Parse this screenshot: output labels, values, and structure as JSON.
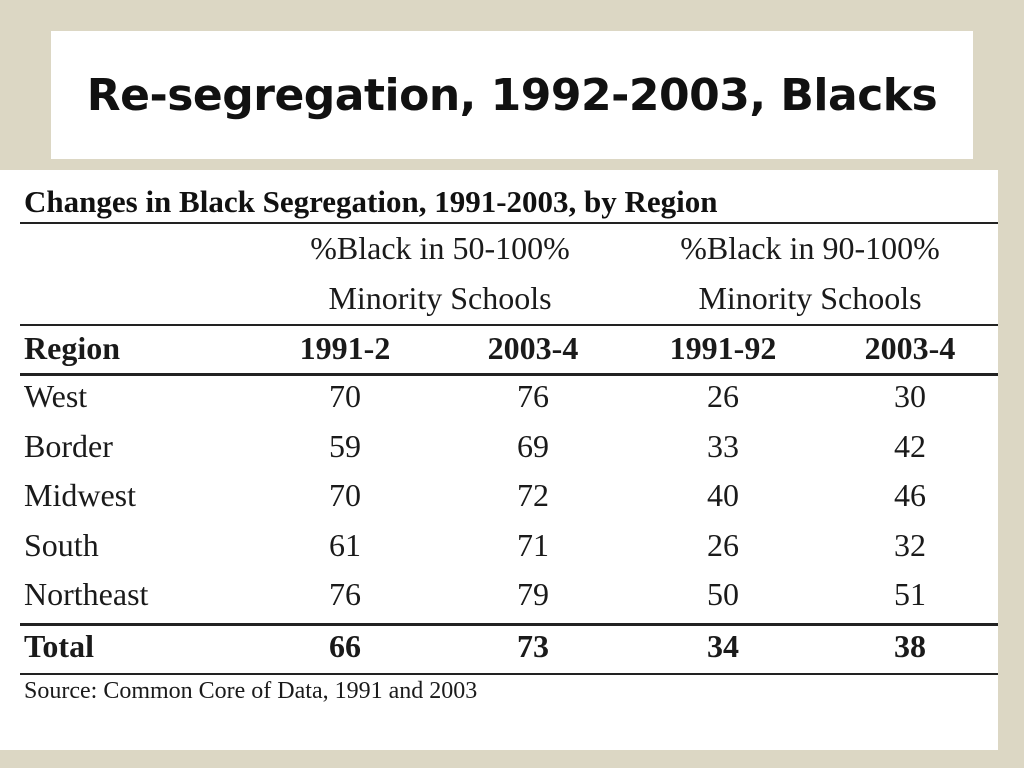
{
  "slide_title": "Re-segregation, 1992-2003, Blacks",
  "table": {
    "title": "Changes in Black Segregation, 1991-2003, by Region",
    "group_headers": [
      {
        "line1": "%Black in 50-100%",
        "line2": "Minority Schools"
      },
      {
        "line1": "%Black in 90-100%",
        "line2": "Minority Schools"
      }
    ],
    "columns": [
      "Region",
      "1991-2",
      "2003-4",
      "1991-92",
      "2003-4"
    ],
    "rows": [
      {
        "region": "West",
        "values": [
          "70",
          "76",
          "26",
          "30"
        ]
      },
      {
        "region": "Border",
        "values": [
          "59",
          "69",
          "33",
          "42"
        ]
      },
      {
        "region": "Midwest",
        "values": [
          "70",
          "72",
          "40",
          "46"
        ]
      },
      {
        "region": "South",
        "values": [
          "61",
          "71",
          "26",
          "32"
        ]
      },
      {
        "region": "Northeast",
        "values": [
          "76",
          "79",
          "50",
          "51"
        ]
      }
    ],
    "total": {
      "region": "Total",
      "values": [
        "66",
        "73",
        "34",
        "38"
      ]
    },
    "source": "Source: Common Core of Data, 1991 and 2003"
  }
}
